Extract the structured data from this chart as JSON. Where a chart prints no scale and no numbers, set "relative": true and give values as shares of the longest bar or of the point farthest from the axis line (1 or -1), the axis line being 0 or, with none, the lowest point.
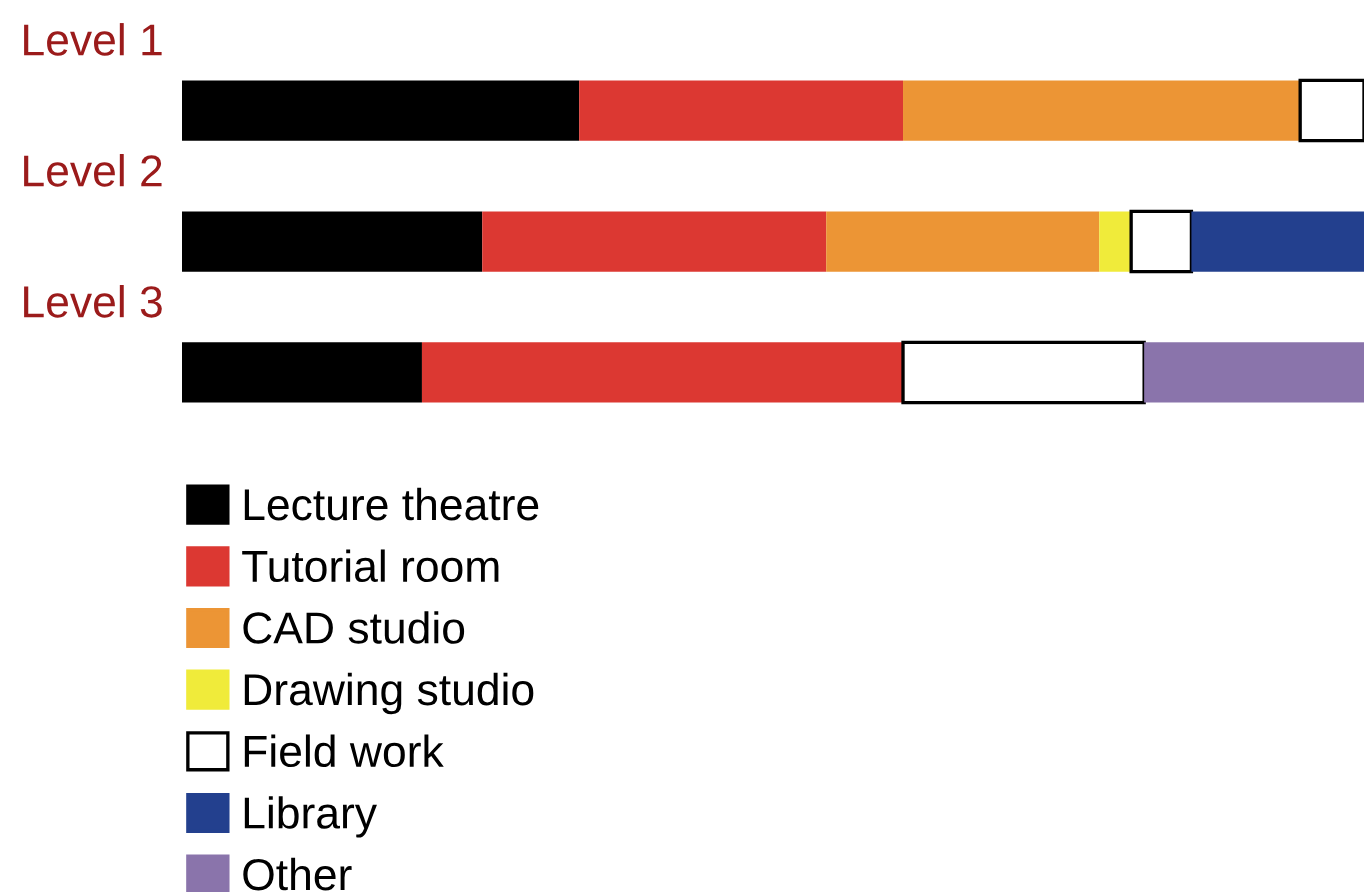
{
  "chart_data": {
    "type": "bar",
    "orientation": "horizontal",
    "stacked": true,
    "relative": true,
    "categories": [
      "Level 1",
      "Level 2",
      "Level 3"
    ],
    "legend": "bottom",
    "series": [
      {
        "name": "Lecture theatre",
        "color": "#000000",
        "values": [
          0.336,
          0.254,
          0.203
        ]
      },
      {
        "name": "Tutorial room",
        "color": "#dc3832",
        "values": [
          0.274,
          0.291,
          0.407
        ]
      },
      {
        "name": "CAD studio",
        "color": "#ec9535",
        "values": [
          0.336,
          0.231,
          null
        ]
      },
      {
        "name": "Drawing studio",
        "color": "#f0eb3a",
        "values": [
          null,
          0.027,
          null
        ]
      },
      {
        "name": "Field work",
        "color": "#ffffff",
        "values": [
          0.054,
          0.051,
          0.204
        ]
      },
      {
        "name": "Library",
        "color": "#23408e",
        "values": [
          null,
          0.146,
          null
        ]
      },
      {
        "name": "Other",
        "color": "#8a74ab",
        "values": [
          null,
          null,
          0.186
        ]
      }
    ]
  }
}
